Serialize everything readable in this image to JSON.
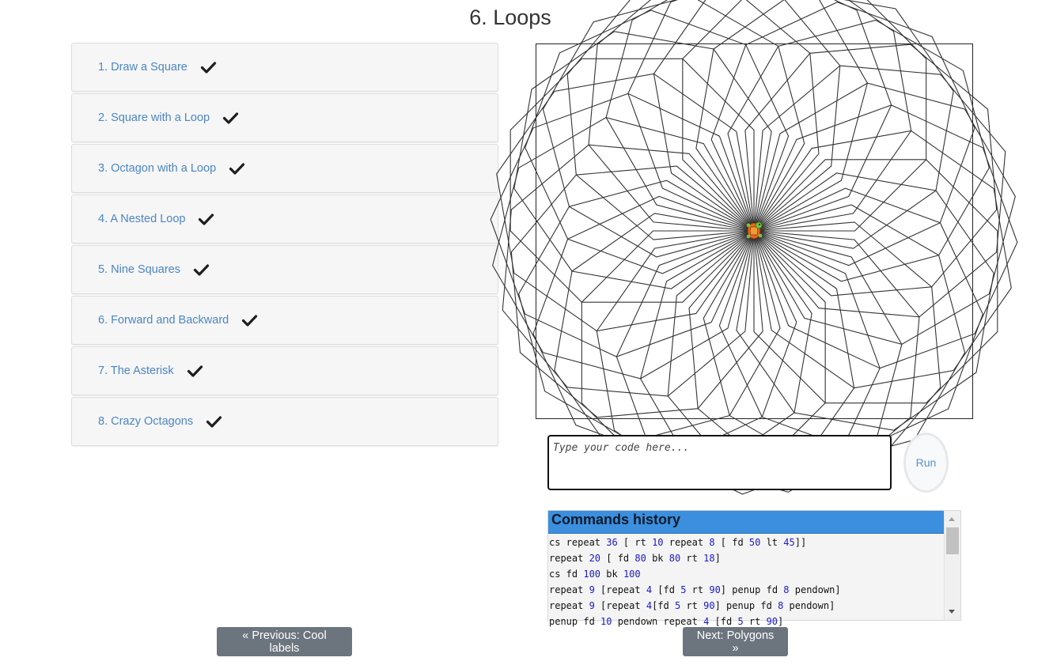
{
  "page_title": "6. Loops",
  "lessons": [
    {
      "label": "1. Draw a Square",
      "completed": true,
      "icon": "checkmark-icon"
    },
    {
      "label": "2. Square with a Loop",
      "completed": true,
      "icon": "checkmark-icon"
    },
    {
      "label": "3. Octagon with a Loop",
      "completed": true,
      "icon": "checkmark-icon"
    },
    {
      "label": "4. A Nested Loop",
      "completed": true,
      "icon": "checkmark-icon"
    },
    {
      "label": "5. Nine Squares",
      "completed": true,
      "icon": "checkmark-icon"
    },
    {
      "label": "6. Forward and Backward",
      "completed": true,
      "icon": "checkmark-icon"
    },
    {
      "label": "7. The Asterisk",
      "completed": true,
      "icon": "checkmark-icon"
    },
    {
      "label": "8. Crazy Octagons",
      "completed": true,
      "icon": "checkmark-icon"
    }
  ],
  "editor": {
    "placeholder": "Type your code here...",
    "value": "",
    "run_label": "Run"
  },
  "history": {
    "title": "Commands history",
    "lines": [
      "cs repeat 36 [ rt 10 repeat 8 [ fd 50 lt 45]]",
      "repeat 20 [ fd 80 bk 80 rt 18]",
      "cs fd 100 bk 100",
      "repeat 9 [repeat 4 [fd 5 rt 90] penup fd 8 pendown]",
      "repeat 9 [repeat 4[fd 5 rt 90] penup fd 8 pendown]",
      "penup fd 10 pendown repeat 4 [fd 5 rt 90]"
    ]
  },
  "nav": {
    "previous_label": "« Previous: Cool labels",
    "next_label": "Next: Polygons »"
  },
  "drawing": {
    "program": "cs repeat 36 [ rt 10 repeat 8 [ fd 50 lt 45]]",
    "repeat_outer": 36,
    "turn_outer": 10,
    "repeat_inner": 8,
    "step": 50,
    "turn_inner": 45,
    "turtle_icon": "turtle-icon",
    "stroke_color": "#333333"
  },
  "colors": {
    "link": "#4a86c5",
    "history_header": "#3c8fde",
    "nav_button": "#6c757d"
  }
}
